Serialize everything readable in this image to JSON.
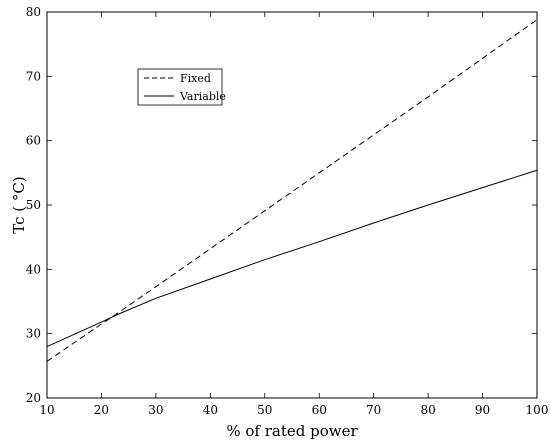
{
  "chart_data": {
    "type": "line",
    "title": "",
    "xlabel": "% of rated power",
    "ylabel": "Tc ( °C)",
    "xlim": [
      10,
      100
    ],
    "ylim": [
      20,
      80
    ],
    "x_ticks": [
      10,
      20,
      30,
      40,
      50,
      60,
      70,
      80,
      90,
      100
    ],
    "y_ticks": [
      20,
      30,
      40,
      50,
      60,
      70,
      80
    ],
    "grid": false,
    "legend_position": "upper-left",
    "series": [
      {
        "name": "Fixed",
        "line_style": "dashed",
        "color": "#000000",
        "x": [
          10,
          20,
          23,
          30,
          40,
          50,
          60,
          70,
          80,
          90,
          100
        ],
        "y": [
          25.7,
          31.5,
          33.2,
          37.3,
          43.2,
          49.1,
          55.0,
          60.9,
          66.8,
          72.8,
          78.8
        ]
      },
      {
        "name": "Variable",
        "line_style": "solid",
        "color": "#000000",
        "x": [
          10,
          20,
          23,
          30,
          40,
          50,
          60,
          70,
          80,
          90,
          100
        ],
        "y": [
          28.0,
          31.8,
          33.0,
          35.5,
          38.5,
          41.5,
          44.3,
          47.2,
          50.0,
          52.7,
          55.4
        ]
      }
    ]
  }
}
